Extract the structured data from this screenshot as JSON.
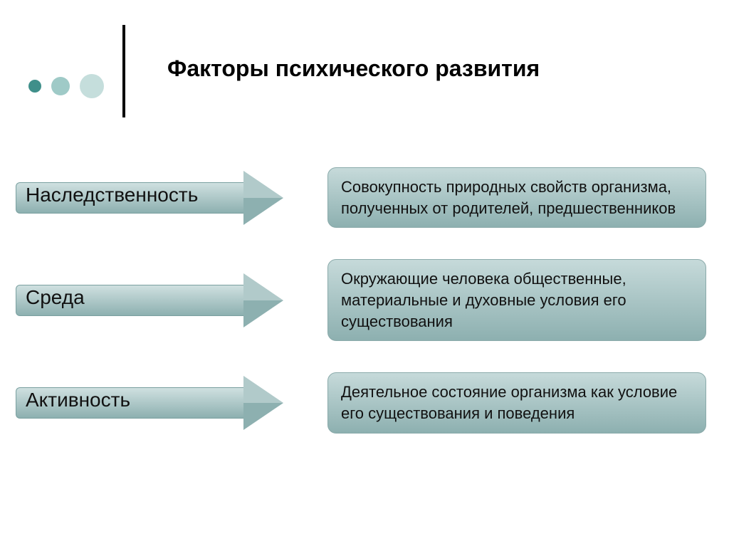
{
  "title": "Факторы психического развития",
  "decor": {
    "dot_colors": [
      "#3f8f8a",
      "#9fcac7",
      "#c5dedc"
    ],
    "line_color": "#000000"
  },
  "theme": {
    "arrow_fill_top": "#cfe0e0",
    "arrow_fill_bottom": "#8db0b0",
    "arrow_border": "#7aa0a0",
    "box_fill_top": "#c6dada",
    "box_fill_bottom": "#8db0b0",
    "box_border": "#8aaaaa",
    "label_fontsize": 28,
    "desc_fontsize": 22,
    "title_fontsize": 32
  },
  "rows": [
    {
      "label": "Наследственность",
      "arrow_body_width": 320,
      "desc": "Совокупность природных свойств организма, полученных от родителей, предшественников"
    },
    {
      "label": "Среда",
      "arrow_body_width": 320,
      "desc": "Окружающие человека общественные, материальные и духовные условия его существования"
    },
    {
      "label": "Активность",
      "arrow_body_width": 320,
      "desc": "Деятельное состояние организма как условие его существования и поведения"
    }
  ]
}
